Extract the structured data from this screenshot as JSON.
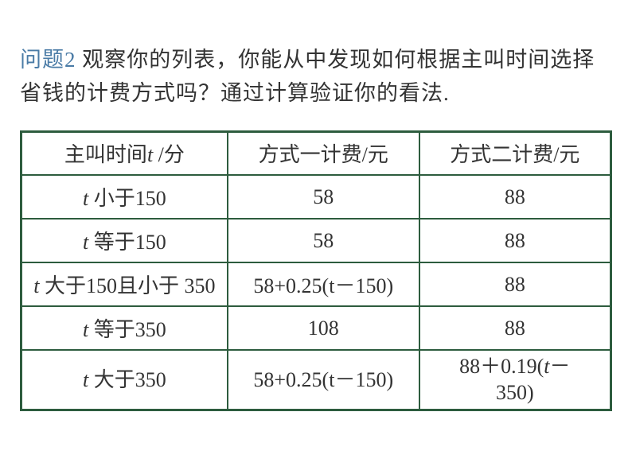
{
  "question": {
    "label": "问题",
    "number": "2",
    "text_part1": "  观察你的列表，你能从中发现如何根据主叫时间选择省钱的计费方式吗？通过计算验证你的看法."
  },
  "table": {
    "colors": {
      "border": "#2d5c3e",
      "text": "#333333",
      "question_label": "#4a7ba6"
    },
    "header": {
      "col1_pre": "主叫时间",
      "col1_var": "t",
      "col1_post": " /分",
      "col2": "方式一计费/元",
      "col3": "方式二计费/元"
    },
    "rows": [
      {
        "condition_var": "t",
        "condition_text": " 小于",
        "condition_num": "150",
        "plan1": "58",
        "plan2": "88"
      },
      {
        "condition_var": "t",
        "condition_text": " 等于",
        "condition_num": "150",
        "plan1": "58",
        "plan2": "88"
      },
      {
        "condition_var": "t",
        "condition_text1": " 大于",
        "condition_num1": "150",
        "condition_text2": "且小于 ",
        "condition_num2": "350",
        "plan1_pre": "58+0.25(t",
        "plan1_post": "－150)",
        "plan2": "88"
      },
      {
        "condition_var": "t",
        "condition_text": " 等于",
        "condition_num": "350",
        "plan1": "108",
        "plan2": "88"
      },
      {
        "condition_var": "t",
        "condition_text": " 大于",
        "condition_num": "350",
        "plan1_pre": "58+0.25(t",
        "plan1_post": "－150)",
        "plan2_pre": "88＋0.19(",
        "plan2_var": "t",
        "plan2_post1": "－",
        "plan2_post2": "350)"
      }
    ]
  }
}
